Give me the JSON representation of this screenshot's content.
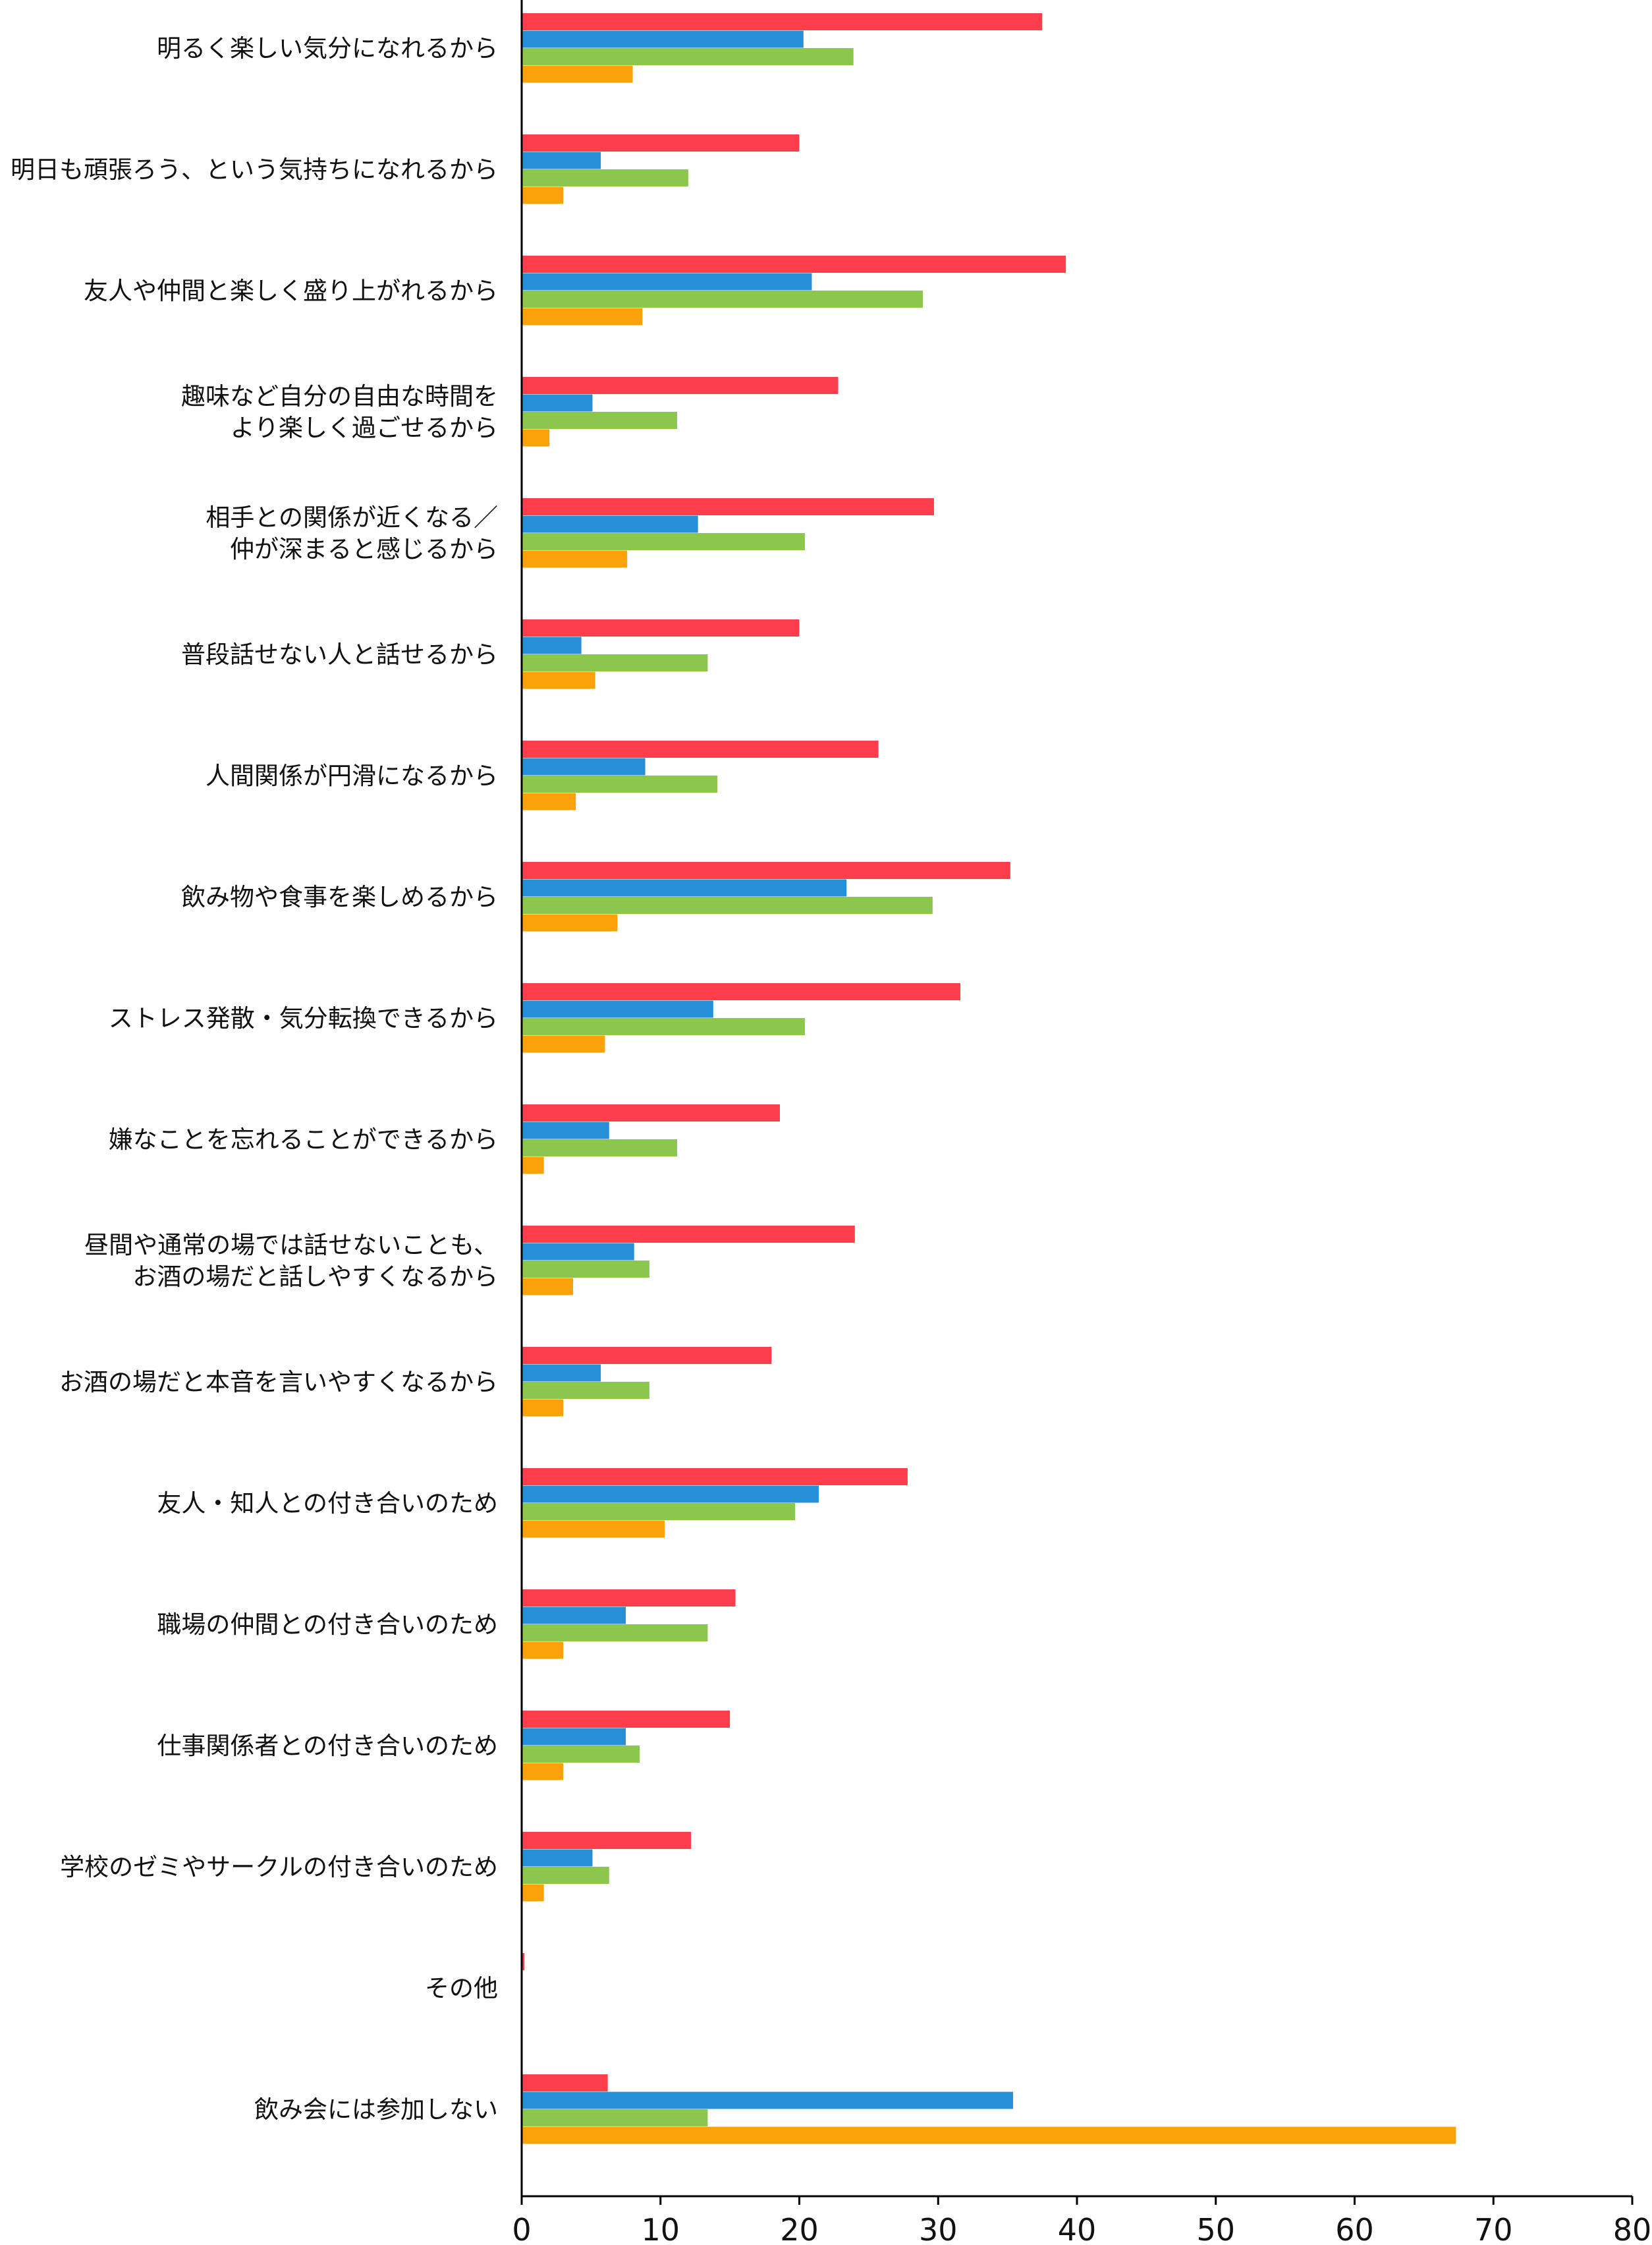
{
  "chart_data": {
    "type": "bar",
    "orientation": "horizontal",
    "title": "",
    "xlabel": "",
    "ylabel": "",
    "xlim": [
      0,
      80
    ],
    "xticks": [
      0,
      10,
      20,
      30,
      40,
      50,
      60,
      70,
      80
    ],
    "grid": false,
    "legend": "none",
    "categories": [
      [
        "明るく楽しい気分になれるから"
      ],
      [
        "明日も頑張ろう、という気持ちになれるから"
      ],
      [
        "友人や仲間と楽しく盛り上がれるから"
      ],
      [
        "趣味など自分の自由な時間を",
        "より楽しく過ごせるから"
      ],
      [
        "相手との関係が近くなる／",
        "仲が深まると感じるから"
      ],
      [
        "普段話せない人と話せるから"
      ],
      [
        "人間関係が円滑になるから"
      ],
      [
        "飲み物や食事を楽しめるから"
      ],
      [
        "ストレス発散・気分転換できるから"
      ],
      [
        "嫌なことを忘れることができるから"
      ],
      [
        "昼間や通常の場では話せないことも、",
        "お酒の場だと話しやすくなるから"
      ],
      [
        "お酒の場だと本音を言いやすくなるから"
      ],
      [
        "友人・知人との付き合いのため"
      ],
      [
        "職場の仲間との付き合いのため"
      ],
      [
        "仕事関係者との付き合いのため"
      ],
      [
        "学校のゼミやサークルの付き合いのため"
      ],
      [
        "その他"
      ],
      [
        "飲み会には参加しない"
      ]
    ],
    "series": [
      {
        "color": "#fc3d4c",
        "values": [
          37.5,
          20.0,
          39.2,
          22.8,
          29.7,
          20.0,
          25.7,
          35.2,
          31.6,
          18.6,
          24.0,
          18.0,
          27.8,
          15.4,
          15.0,
          12.2,
          0.2,
          6.2
        ]
      },
      {
        "color": "#2590d8",
        "values": [
          20.3,
          5.7,
          20.9,
          5.1,
          12.7,
          4.3,
          8.9,
          23.4,
          13.8,
          6.3,
          8.1,
          5.7,
          21.4,
          7.5,
          7.5,
          5.1,
          0,
          35.4
        ]
      },
      {
        "color": "#8cc64f",
        "values": [
          23.9,
          12.0,
          28.9,
          11.2,
          20.4,
          13.4,
          14.1,
          29.6,
          20.4,
          11.2,
          9.2,
          9.2,
          19.7,
          13.4,
          8.5,
          6.3,
          0,
          13.4
        ]
      },
      {
        "color": "#fba10a",
        "values": [
          8.0,
          3.0,
          8.7,
          2.0,
          7.6,
          5.3,
          3.9,
          6.9,
          6.0,
          1.6,
          3.7,
          3.0,
          10.3,
          3.0,
          3.0,
          1.6,
          0,
          67.3
        ]
      }
    ]
  }
}
